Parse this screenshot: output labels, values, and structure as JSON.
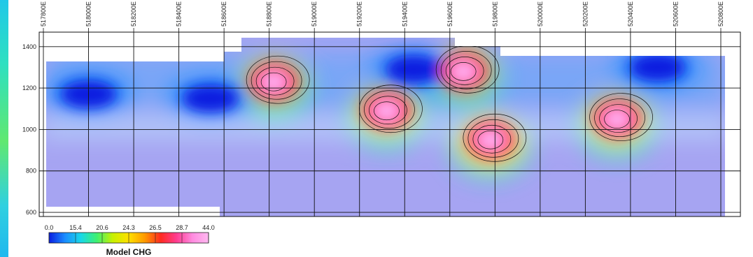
{
  "chart_data": {
    "type": "heatmap",
    "title": "",
    "xlabel": "",
    "ylabel": "",
    "x_tick_labels": [
      "517800E",
      "518000E",
      "518200E",
      "518400E",
      "518600E",
      "518800E",
      "519000E",
      "519200E",
      "519400E",
      "519600E",
      "519800E",
      "520000E",
      "520200E",
      "520400E",
      "520600E",
      "520800E"
    ],
    "y_ticks": [
      600,
      800,
      1000,
      1200,
      1400
    ],
    "ylim": [
      580,
      1470
    ],
    "grid": true,
    "colorbar": {
      "title": "Model CHG",
      "tick_labels": [
        "0.0",
        "15.4",
        "20.6",
        "24.3",
        "26.5",
        "28.7",
        "44.0"
      ],
      "colors": [
        "#0a1ee0",
        "#1a8cff",
        "#18d8e8",
        "#3ef070",
        "#c8f000",
        "#ffe000",
        "#ff9a00",
        "#ff2a20",
        "#ff3c90",
        "#ff8ce0",
        "#ffb8f0"
      ]
    },
    "anomalies": [
      {
        "x_index": 5.1,
        "elevation": 1230,
        "level": "high"
      },
      {
        "x_index": 7.6,
        "elevation": 1090,
        "level": "high"
      },
      {
        "x_index": 9.9,
        "elevation": 950,
        "level": "high"
      },
      {
        "x_index": 12.7,
        "elevation": 1050,
        "level": "high"
      },
      {
        "x_index": 9.3,
        "elevation": 1280,
        "level": "high"
      },
      {
        "x_index": 1.0,
        "elevation": 1170,
        "level": "low"
      },
      {
        "x_index": 3.7,
        "elevation": 1150,
        "level": "low"
      },
      {
        "x_index": 8.2,
        "elevation": 1290,
        "level": "low"
      },
      {
        "x_index": 13.6,
        "elevation": 1300,
        "level": "low"
      }
    ]
  }
}
